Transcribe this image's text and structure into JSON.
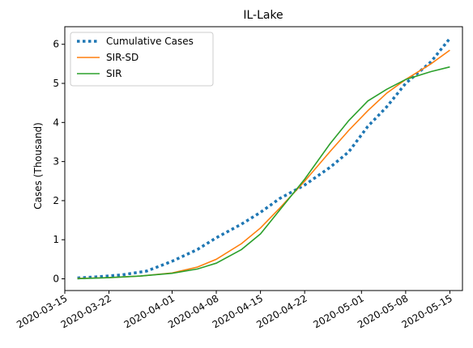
{
  "chart_data": {
    "type": "line",
    "title": "IL-Lake",
    "xlabel": "",
    "ylabel": "Cases (Thousand)",
    "x_ticks": [
      "2020-03-15",
      "2020-03-22",
      "2020-04-01",
      "2020-04-08",
      "2020-04-15",
      "2020-04-22",
      "2020-05-01",
      "2020-05-08",
      "2020-05-15"
    ],
    "y_ticks": [
      0,
      1,
      2,
      3,
      4,
      5,
      6
    ],
    "ylim": [
      -0.3,
      6.45
    ],
    "xlim": [
      "2020-03-15",
      "2020-05-17"
    ],
    "grid": false,
    "legend_position": "upper-left",
    "colors": {
      "cumulative": "#1f77b4",
      "sir_sd": "#ff7f0e",
      "sir": "#2ca02c"
    },
    "series": [
      {
        "name": "Cumulative Cases",
        "style": "dotted",
        "x": [
          "2020-03-17",
          "2020-03-20",
          "2020-03-24",
          "2020-03-28",
          "2020-04-01",
          "2020-04-05",
          "2020-04-08",
          "2020-04-12",
          "2020-04-15",
          "2020-04-18",
          "2020-04-22",
          "2020-04-26",
          "2020-04-29",
          "2020-05-02",
          "2020-05-05",
          "2020-05-08",
          "2020-05-12",
          "2020-05-15"
        ],
        "values": [
          0.02,
          0.05,
          0.1,
          0.2,
          0.45,
          0.75,
          1.05,
          1.4,
          1.7,
          2.05,
          2.4,
          2.85,
          3.25,
          3.9,
          4.4,
          5.0,
          5.55,
          6.15
        ]
      },
      {
        "name": "SIR-SD",
        "style": "solid",
        "x": [
          "2020-03-17",
          "2020-03-22",
          "2020-03-27",
          "2020-04-01",
          "2020-04-05",
          "2020-04-08",
          "2020-04-12",
          "2020-04-15",
          "2020-04-18",
          "2020-04-22",
          "2020-04-26",
          "2020-04-29",
          "2020-05-02",
          "2020-05-05",
          "2020-05-08",
          "2020-05-12",
          "2020-05-15"
        ],
        "values": [
          0.01,
          0.03,
          0.07,
          0.15,
          0.3,
          0.5,
          0.9,
          1.3,
          1.8,
          2.5,
          3.25,
          3.8,
          4.3,
          4.75,
          5.1,
          5.5,
          5.85
        ]
      },
      {
        "name": "SIR",
        "style": "solid",
        "x": [
          "2020-03-17",
          "2020-03-22",
          "2020-03-27",
          "2020-04-01",
          "2020-04-05",
          "2020-04-08",
          "2020-04-12",
          "2020-04-15",
          "2020-04-18",
          "2020-04-22",
          "2020-04-26",
          "2020-04-29",
          "2020-05-02",
          "2020-05-05",
          "2020-05-08",
          "2020-05-12",
          "2020-05-15"
        ],
        "values": [
          0.005,
          0.03,
          0.07,
          0.14,
          0.25,
          0.4,
          0.75,
          1.15,
          1.75,
          2.55,
          3.45,
          4.05,
          4.55,
          4.85,
          5.1,
          5.3,
          5.42
        ]
      }
    ]
  }
}
